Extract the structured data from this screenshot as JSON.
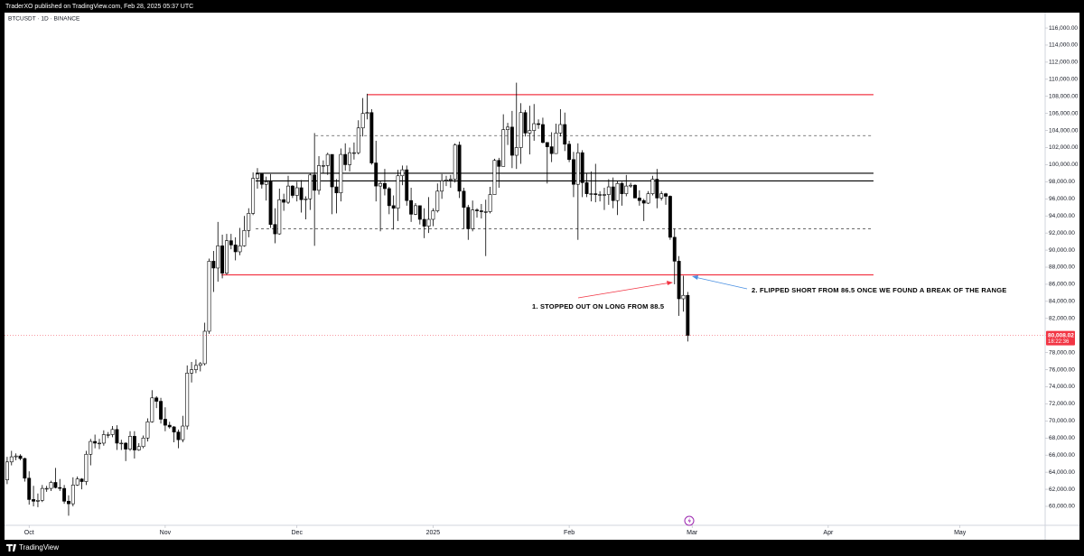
{
  "header": "TraderXO published on TradingView.com, Feb 28, 2025 05:37 UTC",
  "footer": "TradingView",
  "chart_data": {
    "type": "candlestick",
    "symbol": "BTCUSDT · 1D · BINANCE",
    "up_color": "#ffffff",
    "down_color": "#000000",
    "wick_color": "#000000",
    "xlim": [
      -0.6,
      236.4
    ],
    "xticks": [
      {
        "value": 5,
        "label": "Oct"
      },
      {
        "value": 36,
        "label": "Nov"
      },
      {
        "value": 66,
        "label": "Dec"
      },
      {
        "value": 97,
        "label": "2025"
      },
      {
        "value": 128,
        "label": "Feb"
      },
      {
        "value": 156,
        "label": "Mar"
      },
      {
        "value": 187,
        "label": "Apr"
      },
      {
        "value": 217,
        "label": "May"
      }
    ],
    "ylim": [
      57780,
      117800
    ],
    "yticks": [
      {
        "value": 60000,
        "label": "60,000.00"
      },
      {
        "value": 62000,
        "label": "62,000.00"
      },
      {
        "value": 64000,
        "label": "64,000.00"
      },
      {
        "value": 66000,
        "label": "66,000.00"
      },
      {
        "value": 68000,
        "label": "68,000.00"
      },
      {
        "value": 70000,
        "label": "70,000.00"
      },
      {
        "value": 72000,
        "label": "72,000.00"
      },
      {
        "value": 74000,
        "label": "74,000.00"
      },
      {
        "value": 76000,
        "label": "76,000.00"
      },
      {
        "value": 78000,
        "label": "78,000.00"
      },
      {
        "value": 80000,
        "label": "80,000.00"
      },
      {
        "value": 82000,
        "label": "82,000.00"
      },
      {
        "value": 84000,
        "label": "84,000.00"
      },
      {
        "value": 86000,
        "label": "86,000.00"
      },
      {
        "value": 88000,
        "label": "88,000.00"
      },
      {
        "value": 90000,
        "label": "90,000.00"
      },
      {
        "value": 92000,
        "label": "92,000.00"
      },
      {
        "value": 94000,
        "label": "94,000.00"
      },
      {
        "value": 96000,
        "label": "96,000.00"
      },
      {
        "value": 98000,
        "label": "98,000.00"
      },
      {
        "value": 100000,
        "label": "100,000.00"
      },
      {
        "value": 102000,
        "label": "102,000.00"
      },
      {
        "value": 104000,
        "label": "104,000.00"
      },
      {
        "value": 106000,
        "label": "106,000.00"
      },
      {
        "value": 108000,
        "label": "108,000.00"
      },
      {
        "value": 110000,
        "label": "110,000.00"
      },
      {
        "value": 112000,
        "label": "112,000.00"
      },
      {
        "value": 114000,
        "label": "114,000.00"
      },
      {
        "value": 116000,
        "label": "116,000.00"
      }
    ],
    "grid": false,
    "candles": [
      [
        63100,
        65800,
        62600,
        65200
      ],
      [
        65200,
        66500,
        64800,
        65800
      ],
      [
        65800,
        66200,
        65400,
        65900
      ],
      [
        65900,
        66100,
        65400,
        65600
      ],
      [
        65600,
        65700,
        62900,
        63300
      ],
      [
        63300,
        64100,
        60200,
        60800
      ],
      [
        60800,
        62400,
        60000,
        60600
      ],
      [
        60600,
        61500,
        59900,
        60700
      ],
      [
        60700,
        62500,
        60500,
        62100
      ],
      [
        62100,
        62400,
        61700,
        62100
      ],
      [
        62100,
        63000,
        61800,
        62800
      ],
      [
        62800,
        64500,
        62100,
        62200
      ],
      [
        62200,
        63200,
        61800,
        62100
      ],
      [
        62100,
        62500,
        60300,
        60600
      ],
      [
        60600,
        61300,
        58900,
        60300
      ],
      [
        60300,
        63400,
        60000,
        62500
      ],
      [
        62500,
        63500,
        62400,
        63200
      ],
      [
        63200,
        63300,
        62000,
        62900
      ],
      [
        62900,
        66500,
        62500,
        66100
      ],
      [
        66100,
        67900,
        64800,
        67600
      ],
      [
        67600,
        68400,
        66800,
        67400
      ],
      [
        67400,
        67900,
        66700,
        67400
      ],
      [
        67400,
        68900,
        67100,
        68400
      ],
      [
        68400,
        68700,
        68000,
        68400
      ],
      [
        68400,
        69400,
        68100,
        69000
      ],
      [
        69000,
        69500,
        66600,
        67400
      ],
      [
        67400,
        67800,
        66600,
        67400
      ],
      [
        67400,
        67500,
        65300,
        66700
      ],
      [
        66700,
        68800,
        66500,
        68200
      ],
      [
        68200,
        68800,
        65600,
        66600
      ],
      [
        66600,
        67400,
        66500,
        67000
      ],
      [
        67000,
        68300,
        66800,
        68000
      ],
      [
        68000,
        70300,
        67600,
        69900
      ],
      [
        69900,
        73600,
        69800,
        72700
      ],
      [
        72700,
        72900,
        71500,
        72300
      ],
      [
        72300,
        72700,
        69700,
        70200
      ],
      [
        70200,
        71600,
        68800,
        69500
      ],
      [
        69500,
        69900,
        69100,
        69300
      ],
      [
        69300,
        69400,
        67500,
        68700
      ],
      [
        68700,
        69000,
        66800,
        67800
      ],
      [
        67800,
        70600,
        67500,
        69400
      ],
      [
        69400,
        76500,
        69000,
        75600
      ],
      [
        75600,
        76900,
        74500,
        76000
      ],
      [
        76000,
        77200,
        75600,
        76500
      ],
      [
        76500,
        76900,
        75800,
        76700
      ],
      [
        76700,
        81500,
        76500,
        80500
      ],
      [
        80500,
        89000,
        80200,
        88700
      ],
      [
        88700,
        89900,
        85100,
        87900
      ],
      [
        87900,
        93300,
        86300,
        90500
      ],
      [
        90500,
        91800,
        86700,
        87300
      ],
      [
        87300,
        91900,
        87100,
        91100
      ],
      [
        91100,
        91900,
        90100,
        90600
      ],
      [
        90600,
        91500,
        88800,
        89800
      ],
      [
        89800,
        92600,
        89400,
        90500
      ],
      [
        90500,
        94000,
        90400,
        92300
      ],
      [
        92300,
        94900,
        91500,
        94300
      ],
      [
        94300,
        99100,
        94100,
        98400
      ],
      [
        98400,
        99600,
        97200,
        98900
      ],
      [
        98900,
        98900,
        97200,
        97700
      ],
      [
        97700,
        98600,
        95800,
        98000
      ],
      [
        98000,
        98900,
        92600,
        93000
      ],
      [
        93000,
        94900,
        90800,
        91900
      ],
      [
        91900,
        97200,
        91800,
        95900
      ],
      [
        95900,
        96600,
        94600,
        95600
      ],
      [
        95600,
        98700,
        95400,
        97500
      ],
      [
        97500,
        97600,
        96100,
        96400
      ],
      [
        96400,
        98000,
        95700,
        97300
      ],
      [
        97300,
        98200,
        94400,
        95900
      ],
      [
        95900,
        96300,
        93600,
        96000
      ],
      [
        96000,
        99000,
        94700,
        98800
      ],
      [
        98800,
        103700,
        90500,
        97000
      ],
      [
        97000,
        101000,
        96500,
        99900
      ],
      [
        99900,
        100500,
        99000,
        99900
      ],
      [
        99900,
        101400,
        98800,
        101200
      ],
      [
        101200,
        101200,
        94200,
        97400
      ],
      [
        97400,
        98300,
        94300,
        96700
      ],
      [
        96700,
        101900,
        95700,
        101200
      ],
      [
        101200,
        102500,
        99300,
        100000
      ],
      [
        100000,
        102000,
        99200,
        101400
      ],
      [
        101400,
        102600,
        100600,
        101400
      ],
      [
        101400,
        105200,
        101200,
        104300
      ],
      [
        104300,
        107800,
        103300,
        106000
      ],
      [
        106000,
        108300,
        105300,
        106100
      ],
      [
        106100,
        106500,
        100000,
        100200
      ],
      [
        100200,
        102800,
        95700,
        97500
      ],
      [
        97500,
        98100,
        92200,
        97800
      ],
      [
        97800,
        99500,
        96400,
        97200
      ],
      [
        97200,
        97400,
        94200,
        95200
      ],
      [
        95200,
        96400,
        92400,
        94900
      ],
      [
        94900,
        99400,
        93400,
        98700
      ],
      [
        98700,
        99900,
        97600,
        99400
      ],
      [
        99400,
        99900,
        95200,
        95800
      ],
      [
        95800,
        97300,
        93300,
        94200
      ],
      [
        94200,
        95500,
        94100,
        95200
      ],
      [
        95200,
        95200,
        93000,
        93600
      ],
      [
        93600,
        94900,
        91400,
        92800
      ],
      [
        92800,
        96200,
        92000,
        93600
      ],
      [
        93600,
        94900,
        92800,
        94600
      ],
      [
        94600,
        97800,
        94400,
        96900
      ],
      [
        96900,
        98900,
        96000,
        98100
      ],
      [
        98100,
        98700,
        97500,
        98200
      ],
      [
        98200,
        98800,
        97300,
        98300
      ],
      [
        98300,
        102500,
        97900,
        102300
      ],
      [
        102300,
        102700,
        96100,
        96900
      ],
      [
        96900,
        97300,
        92500,
        95000
      ],
      [
        95000,
        95300,
        91200,
        92500
      ],
      [
        92500,
        95800,
        92200,
        94700
      ],
      [
        94700,
        94900,
        93800,
        94600
      ],
      [
        94600,
        95400,
        93700,
        94500
      ],
      [
        94500,
        95900,
        89300,
        94500
      ],
      [
        94500,
        97400,
        94300,
        96500
      ],
      [
        96500,
        100700,
        96500,
        100500
      ],
      [
        100500,
        100800,
        97300,
        99800
      ],
      [
        99800,
        105900,
        99800,
        104100
      ],
      [
        104100,
        104900,
        102300,
        104400
      ],
      [
        104400,
        106300,
        99600,
        101100
      ],
      [
        101100,
        109600,
        99500,
        102000
      ],
      [
        102000,
        107200,
        100100,
        106100
      ],
      [
        106100,
        106400,
        103300,
        103700
      ],
      [
        103700,
        106900,
        101200,
        104000
      ],
      [
        104000,
        107100,
        102800,
        104800
      ],
      [
        104800,
        105300,
        104200,
        104700
      ],
      [
        104700,
        105500,
        102500,
        102600
      ],
      [
        102600,
        102600,
        97800,
        102100
      ],
      [
        102100,
        103800,
        100300,
        101300
      ],
      [
        101300,
        104800,
        101300,
        103700
      ],
      [
        103700,
        106500,
        103300,
        104700
      ],
      [
        104700,
        106100,
        101600,
        102400
      ],
      [
        102400,
        102800,
        100300,
        100600
      ],
      [
        100600,
        101500,
        96200,
        97700
      ],
      [
        97700,
        102500,
        91200,
        101400
      ],
      [
        101400,
        101700,
        96200,
        97900
      ],
      [
        97900,
        99000,
        96200,
        96600
      ],
      [
        96600,
        99200,
        95700,
        96600
      ],
      [
        96600,
        100100,
        95600,
        96500
      ],
      [
        96500,
        96900,
        95700,
        96500
      ],
      [
        96500,
        97300,
        94700,
        96500
      ],
      [
        96500,
        98300,
        95300,
        97400
      ],
      [
        97400,
        98500,
        94900,
        95800
      ],
      [
        95800,
        98100,
        94100,
        97800
      ],
      [
        97800,
        98000,
        95200,
        96600
      ],
      [
        96600,
        98800,
        96300,
        97500
      ],
      [
        97500,
        97900,
        97300,
        97600
      ],
      [
        97600,
        97700,
        96100,
        96100
      ],
      [
        96100,
        97000,
        95200,
        95800
      ],
      [
        95800,
        96000,
        93400,
        95500
      ],
      [
        95500,
        96900,
        95400,
        96600
      ],
      [
        96600,
        98700,
        96400,
        98300
      ],
      [
        98300,
        99500,
        94900,
        96100
      ],
      [
        96100,
        96900,
        95800,
        96600
      ],
      [
        96600,
        96700,
        95300,
        96300
      ],
      [
        96300,
        96400,
        91200,
        91500
      ],
      [
        91500,
        92500,
        86000,
        88700
      ],
      [
        88700,
        89300,
        82300,
        84300
      ],
      [
        84300,
        87000,
        82800,
        84700
      ],
      [
        84700,
        85100,
        79300,
        80008.02
      ]
    ],
    "levels": [
      {
        "value": 108200,
        "color": "#f23645",
        "dashed": false,
        "from": 82,
        "to": 197.3
      },
      {
        "value": 103400,
        "color": "#555555",
        "dashed": true,
        "from": 70.2,
        "to": 197.3
      },
      {
        "value": 99000,
        "color": "#000000",
        "dashed": false,
        "from": 56.6,
        "to": 197.3
      },
      {
        "value": 98100,
        "color": "#000000",
        "dashed": false,
        "from": 56.6,
        "to": 197.3
      },
      {
        "value": 92500,
        "color": "#555555",
        "dashed": true,
        "from": 56.6,
        "to": 197.3
      },
      {
        "value": 87100,
        "color": "#f23645",
        "dashed": false,
        "from": 48.8,
        "to": 197.3
      }
    ],
    "price_tag": {
      "value": 80008.02,
      "label": "80,008.02",
      "countdown": "18:22:36",
      "color": "#f23645"
    },
    "annotations": [
      "1. STOPPED OUT ON LONG FROM 88.5",
      "2. FLIPPED SHORT FROM 86.5 ONCE WE FOUND A BREAK OF THE RANGE"
    ]
  }
}
